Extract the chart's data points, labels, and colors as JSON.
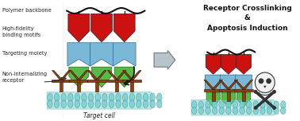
{
  "bg_color": "#ffffff",
  "title_right": "Receptor Crosslinking\n&\nApoptosis Induction",
  "label_polymer": "Polymer backbone",
  "label_hfidelity": "High-fidelity\nbinding motifs",
  "label_targeting": "Targeting moiety",
  "label_nonintern": "Non-internalizing\nreceptor",
  "label_targetcell": "Target cell",
  "color_red": "#cc1111",
  "color_blue": "#7ab8d8",
  "color_green": "#55bb44",
  "color_brown": "#8b4010",
  "color_membrane": "#7ecece",
  "color_backbone": "#111111",
  "color_arrow_fill": "#b8c4cc",
  "color_arrow_edge": "#707880",
  "fig_width": 3.78,
  "fig_height": 1.52,
  "dpi": 100
}
